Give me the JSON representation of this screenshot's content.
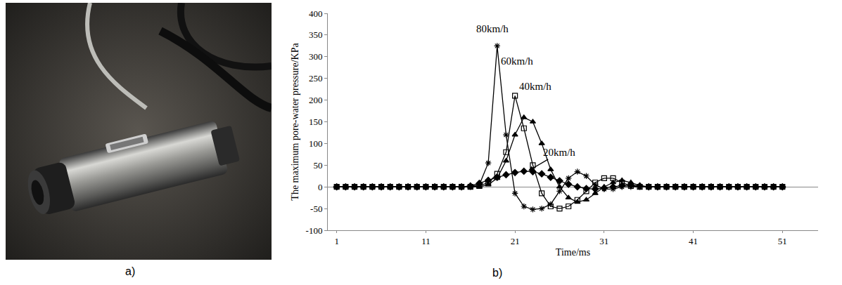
{
  "panel_labels": [
    "a)",
    "b)"
  ],
  "chart_data": {
    "type": "line",
    "x_label": "Time/ms",
    "y_label": "The maximum pore-water pressure/KPa",
    "x": [
      1,
      2,
      3,
      4,
      5,
      6,
      7,
      8,
      9,
      10,
      11,
      12,
      13,
      14,
      15,
      16,
      17,
      18,
      19,
      20,
      21,
      22,
      23,
      24,
      25,
      26,
      27,
      28,
      29,
      30,
      31,
      32,
      33,
      34,
      35,
      36,
      37,
      38,
      39,
      40,
      41,
      42,
      43,
      44,
      45,
      46,
      47,
      48,
      49,
      50,
      51
    ],
    "series": [
      {
        "name": "80km/h",
        "color": "#000000",
        "marker": "asterisk",
        "values": [
          0,
          0,
          0,
          0,
          0,
          0,
          0,
          0,
          0,
          0,
          0,
          0,
          0,
          0,
          0,
          0,
          5,
          55,
          325,
          120,
          -15,
          -45,
          -52,
          -50,
          -40,
          -10,
          20,
          35,
          25,
          5,
          -5,
          -5,
          0,
          0,
          0,
          0,
          0,
          0,
          0,
          0,
          0,
          0,
          0,
          0,
          0,
          0,
          0,
          0,
          0,
          0,
          0
        ]
      },
      {
        "name": "60km/h",
        "color": "#000000",
        "marker": "square",
        "values": [
          0,
          0,
          0,
          0,
          0,
          0,
          0,
          0,
          0,
          0,
          0,
          0,
          0,
          0,
          0,
          0,
          2,
          10,
          30,
          80,
          210,
          135,
          50,
          -15,
          -45,
          -50,
          -45,
          -30,
          -10,
          10,
          20,
          20,
          10,
          2,
          0,
          0,
          0,
          0,
          0,
          0,
          0,
          0,
          0,
          0,
          0,
          0,
          0,
          0,
          0,
          0,
          0
        ]
      },
      {
        "name": "40km/h",
        "color": "#000000",
        "marker": "triangle",
        "values": [
          0,
          0,
          0,
          0,
          0,
          0,
          0,
          0,
          0,
          0,
          0,
          0,
          0,
          0,
          0,
          0,
          0,
          5,
          20,
          60,
          120,
          160,
          150,
          100,
          40,
          0,
          -25,
          -35,
          -30,
          -15,
          0,
          10,
          15,
          10,
          3,
          0,
          0,
          0,
          0,
          0,
          0,
          0,
          0,
          0,
          0,
          0,
          0,
          0,
          0,
          0,
          0
        ]
      },
      {
        "name": "20km/h",
        "color": "#000000",
        "marker": "diamond",
        "values": [
          0,
          0,
          0,
          0,
          0,
          0,
          0,
          0,
          0,
          0,
          0,
          0,
          0,
          0,
          0,
          2,
          8,
          15,
          22,
          28,
          33,
          36,
          35,
          30,
          22,
          14,
          6,
          0,
          -4,
          -5,
          -3,
          0,
          3,
          4,
          2,
          0,
          0,
          0,
          0,
          0,
          0,
          0,
          0,
          0,
          0,
          0,
          0,
          0,
          0,
          0,
          0
        ]
      }
    ],
    "annotations": [
      {
        "text": "80km/h",
        "x": 18.5,
        "y": 364
      },
      {
        "text": "60km/h",
        "x": 21.2,
        "y": 290
      },
      {
        "text": "40km/h",
        "x": 23.3,
        "y": 232
      },
      {
        "text": "20km/h",
        "x": 26,
        "y": 79,
        "arrow_to": [
          22.5,
          37
        ]
      }
    ],
    "xlim": [
      0,
      55
    ],
    "xticks": [
      1,
      11,
      21,
      31,
      41,
      51
    ],
    "ylim": [
      -100,
      400
    ],
    "yticks": [
      -100,
      -50,
      0,
      50,
      100,
      150,
      200,
      250,
      300,
      350,
      400
    ],
    "grid": false
  }
}
